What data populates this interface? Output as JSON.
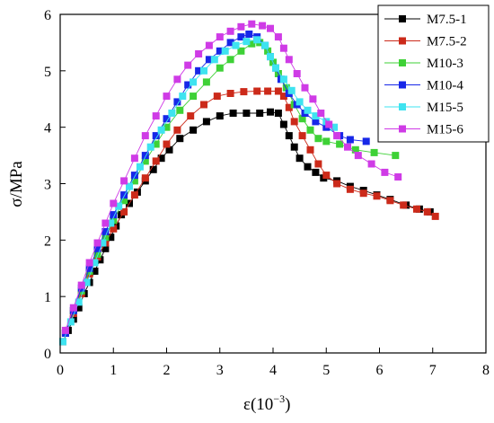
{
  "chart_data": {
    "type": "scatter",
    "title": "",
    "xlabel": "ε(10",
    "xlabel_sup": "−3",
    "xlabel_close": ")",
    "ylabel": "σ/MPa",
    "xlim": [
      0,
      8
    ],
    "ylim": [
      0,
      6
    ],
    "xticks": [
      "0",
      "1",
      "2",
      "3",
      "4",
      "5",
      "6",
      "7",
      "8"
    ],
    "yticks": [
      "0",
      "1",
      "2",
      "3",
      "4",
      "5",
      "6"
    ],
    "legend_position": "top-right",
    "grid": false,
    "series": [
      {
        "name": "M7.5-1",
        "color": "#000000",
        "marker": "square",
        "points": [
          [
            0.05,
            0.2
          ],
          [
            0.15,
            0.4
          ],
          [
            0.25,
            0.6
          ],
          [
            0.35,
            0.8
          ],
          [
            0.45,
            1.05
          ],
          [
            0.55,
            1.25
          ],
          [
            0.65,
            1.45
          ],
          [
            0.75,
            1.65
          ],
          [
            0.85,
            1.85
          ],
          [
            0.95,
            2.05
          ],
          [
            1.05,
            2.25
          ],
          [
            1.15,
            2.45
          ],
          [
            1.3,
            2.65
          ],
          [
            1.45,
            2.85
          ],
          [
            1.6,
            3.05
          ],
          [
            1.75,
            3.25
          ],
          [
            1.9,
            3.45
          ],
          [
            2.05,
            3.6
          ],
          [
            2.25,
            3.8
          ],
          [
            2.5,
            3.95
          ],
          [
            2.75,
            4.1
          ],
          [
            3.0,
            4.2
          ],
          [
            3.25,
            4.25
          ],
          [
            3.5,
            4.25
          ],
          [
            3.75,
            4.25
          ],
          [
            3.95,
            4.27
          ],
          [
            4.1,
            4.25
          ],
          [
            4.2,
            4.05
          ],
          [
            4.3,
            3.85
          ],
          [
            4.4,
            3.65
          ],
          [
            4.5,
            3.45
          ],
          [
            4.65,
            3.3
          ],
          [
            4.8,
            3.2
          ],
          [
            4.95,
            3.1
          ],
          [
            5.2,
            3.05
          ],
          [
            5.45,
            2.95
          ],
          [
            5.7,
            2.88
          ],
          [
            5.95,
            2.8
          ],
          [
            6.2,
            2.72
          ],
          [
            6.5,
            2.62
          ],
          [
            6.75,
            2.55
          ],
          [
            6.95,
            2.5
          ]
        ]
      },
      {
        "name": "M7.5-2",
        "color": "#cc2a1a",
        "marker": "square",
        "points": [
          [
            0.1,
            0.35
          ],
          [
            0.25,
            0.7
          ],
          [
            0.4,
            1.05
          ],
          [
            0.55,
            1.4
          ],
          [
            0.7,
            1.7
          ],
          [
            0.85,
            1.95
          ],
          [
            1.0,
            2.2
          ],
          [
            1.2,
            2.5
          ],
          [
            1.4,
            2.8
          ],
          [
            1.6,
            3.1
          ],
          [
            1.8,
            3.4
          ],
          [
            2.0,
            3.7
          ],
          [
            2.2,
            3.95
          ],
          [
            2.45,
            4.2
          ],
          [
            2.7,
            4.4
          ],
          [
            2.95,
            4.55
          ],
          [
            3.2,
            4.6
          ],
          [
            3.45,
            4.63
          ],
          [
            3.7,
            4.64
          ],
          [
            3.9,
            4.64
          ],
          [
            4.1,
            4.64
          ],
          [
            4.2,
            4.55
          ],
          [
            4.3,
            4.35
          ],
          [
            4.4,
            4.1
          ],
          [
            4.55,
            3.85
          ],
          [
            4.7,
            3.6
          ],
          [
            4.85,
            3.35
          ],
          [
            5.0,
            3.15
          ],
          [
            5.2,
            3.0
          ],
          [
            5.45,
            2.9
          ],
          [
            5.7,
            2.83
          ],
          [
            5.95,
            2.78
          ],
          [
            6.2,
            2.7
          ],
          [
            6.45,
            2.62
          ],
          [
            6.7,
            2.55
          ],
          [
            6.9,
            2.5
          ],
          [
            7.05,
            2.42
          ]
        ]
      },
      {
        "name": "M10-3",
        "color": "#3ed136",
        "marker": "square",
        "points": [
          [
            0.1,
            0.35
          ],
          [
            0.25,
            0.75
          ],
          [
            0.4,
            1.1
          ],
          [
            0.55,
            1.45
          ],
          [
            0.7,
            1.75
          ],
          [
            0.85,
            2.05
          ],
          [
            1.0,
            2.35
          ],
          [
            1.2,
            2.7
          ],
          [
            1.4,
            3.05
          ],
          [
            1.6,
            3.4
          ],
          [
            1.8,
            3.7
          ],
          [
            2.0,
            4.0
          ],
          [
            2.25,
            4.3
          ],
          [
            2.5,
            4.55
          ],
          [
            2.75,
            4.8
          ],
          [
            3.0,
            5.05
          ],
          [
            3.2,
            5.2
          ],
          [
            3.4,
            5.35
          ],
          [
            3.6,
            5.48
          ],
          [
            3.75,
            5.5
          ],
          [
            3.9,
            5.35
          ],
          [
            4.0,
            5.15
          ],
          [
            4.1,
            4.95
          ],
          [
            4.25,
            4.7
          ],
          [
            4.4,
            4.4
          ],
          [
            4.55,
            4.15
          ],
          [
            4.7,
            3.95
          ],
          [
            4.85,
            3.8
          ],
          [
            5.0,
            3.75
          ],
          [
            5.25,
            3.7
          ],
          [
            5.55,
            3.6
          ],
          [
            5.9,
            3.55
          ],
          [
            6.3,
            3.5
          ]
        ]
      },
      {
        "name": "M10-4",
        "color": "#1727e8",
        "marker": "square",
        "points": [
          [
            0.1,
            0.35
          ],
          [
            0.25,
            0.75
          ],
          [
            0.4,
            1.15
          ],
          [
            0.55,
            1.5
          ],
          [
            0.7,
            1.85
          ],
          [
            0.85,
            2.15
          ],
          [
            1.0,
            2.45
          ],
          [
            1.2,
            2.8
          ],
          [
            1.4,
            3.15
          ],
          [
            1.6,
            3.5
          ],
          [
            1.8,
            3.85
          ],
          [
            2.0,
            4.15
          ],
          [
            2.2,
            4.45
          ],
          [
            2.4,
            4.75
          ],
          [
            2.6,
            5.0
          ],
          [
            2.8,
            5.2
          ],
          [
            3.0,
            5.35
          ],
          [
            3.2,
            5.5
          ],
          [
            3.4,
            5.6
          ],
          [
            3.55,
            5.65
          ],
          [
            3.7,
            5.6
          ],
          [
            3.85,
            5.45
          ],
          [
            3.95,
            5.25
          ],
          [
            4.05,
            5.05
          ],
          [
            4.15,
            4.85
          ],
          [
            4.3,
            4.6
          ],
          [
            4.45,
            4.4
          ],
          [
            4.6,
            4.25
          ],
          [
            4.8,
            4.1
          ],
          [
            5.0,
            4.0
          ],
          [
            5.25,
            3.85
          ],
          [
            5.45,
            3.78
          ],
          [
            5.75,
            3.75
          ]
        ]
      },
      {
        "name": "M15-5",
        "color": "#3ee3f0",
        "marker": "square",
        "points": [
          [
            0.05,
            0.2
          ],
          [
            0.2,
            0.55
          ],
          [
            0.35,
            0.9
          ],
          [
            0.5,
            1.25
          ],
          [
            0.65,
            1.6
          ],
          [
            0.8,
            1.95
          ],
          [
            0.95,
            2.3
          ],
          [
            1.1,
            2.6
          ],
          [
            1.3,
            2.95
          ],
          [
            1.5,
            3.3
          ],
          [
            1.7,
            3.65
          ],
          [
            1.9,
            3.95
          ],
          [
            2.1,
            4.25
          ],
          [
            2.3,
            4.55
          ],
          [
            2.5,
            4.8
          ],
          [
            2.7,
            5.0
          ],
          [
            2.9,
            5.2
          ],
          [
            3.1,
            5.35
          ],
          [
            3.3,
            5.45
          ],
          [
            3.5,
            5.52
          ],
          [
            3.7,
            5.55
          ],
          [
            3.85,
            5.45
          ],
          [
            3.95,
            5.25
          ],
          [
            4.05,
            5.05
          ],
          [
            4.2,
            4.85
          ],
          [
            4.35,
            4.65
          ],
          [
            4.5,
            4.45
          ],
          [
            4.65,
            4.3
          ],
          [
            4.8,
            4.2
          ],
          [
            5.0,
            4.1
          ],
          [
            5.15,
            4.0
          ]
        ]
      },
      {
        "name": "M15-6",
        "color": "#cf3be6",
        "marker": "square",
        "points": [
          [
            0.1,
            0.4
          ],
          [
            0.25,
            0.8
          ],
          [
            0.4,
            1.2
          ],
          [
            0.55,
            1.6
          ],
          [
            0.7,
            1.95
          ],
          [
            0.85,
            2.3
          ],
          [
            1.0,
            2.65
          ],
          [
            1.2,
            3.05
          ],
          [
            1.4,
            3.45
          ],
          [
            1.6,
            3.85
          ],
          [
            1.8,
            4.2
          ],
          [
            2.0,
            4.55
          ],
          [
            2.2,
            4.85
          ],
          [
            2.4,
            5.1
          ],
          [
            2.6,
            5.3
          ],
          [
            2.8,
            5.45
          ],
          [
            3.0,
            5.6
          ],
          [
            3.2,
            5.7
          ],
          [
            3.4,
            5.78
          ],
          [
            3.6,
            5.83
          ],
          [
            3.8,
            5.8
          ],
          [
            3.95,
            5.75
          ],
          [
            4.1,
            5.6
          ],
          [
            4.2,
            5.4
          ],
          [
            4.3,
            5.2
          ],
          [
            4.45,
            4.95
          ],
          [
            4.6,
            4.7
          ],
          [
            4.75,
            4.5
          ],
          [
            4.9,
            4.25
          ],
          [
            5.05,
            4.05
          ],
          [
            5.2,
            3.85
          ],
          [
            5.4,
            3.65
          ],
          [
            5.6,
            3.5
          ],
          [
            5.85,
            3.35
          ],
          [
            6.1,
            3.2
          ],
          [
            6.35,
            3.12
          ]
        ]
      }
    ]
  }
}
